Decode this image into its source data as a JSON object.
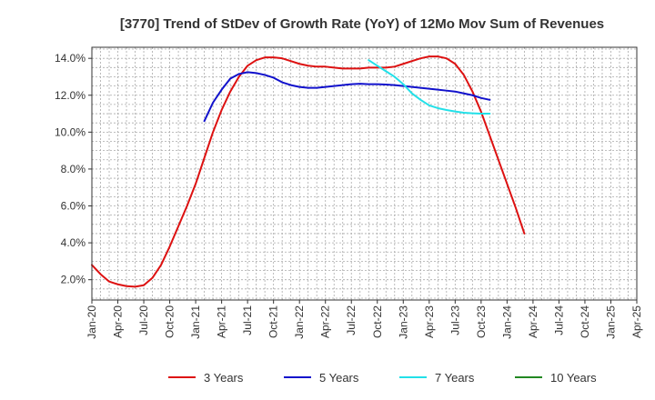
{
  "chart_data": {
    "type": "line",
    "title": "[3770]  Trend of StDev of Growth Rate (YoY) of 12Mo Mov Sum of Revenues",
    "xlabel": "",
    "ylabel": "",
    "ylim": [
      0.9,
      14.6
    ],
    "y_ticks": [
      2.0,
      4.0,
      6.0,
      8.0,
      10.0,
      12.0,
      14.0
    ],
    "y_tick_labels": [
      "2.0%",
      "4.0%",
      "6.0%",
      "8.0%",
      "10.0%",
      "12.0%",
      "14.0%"
    ],
    "x_tick_labels": [
      "Jan-20",
      "Apr-20",
      "Jul-20",
      "Oct-20",
      "Jan-21",
      "Apr-21",
      "Jul-21",
      "Oct-21",
      "Jan-22",
      "Apr-22",
      "Jul-22",
      "Oct-22",
      "Jan-23",
      "Apr-23",
      "Jul-23",
      "Oct-23",
      "Jan-24",
      "Apr-24",
      "Jul-24",
      "Oct-24",
      "Jan-25",
      "Apr-25"
    ],
    "grid": true,
    "legend_position": "bottom",
    "series": [
      {
        "name": "3 Years",
        "color": "#dd1111",
        "points": [
          [
            0,
            2.8
          ],
          [
            1,
            2.3
          ],
          [
            2,
            1.9
          ],
          [
            3,
            1.75
          ],
          [
            4,
            1.65
          ],
          [
            5,
            1.62
          ],
          [
            6,
            1.7
          ],
          [
            7,
            2.1
          ],
          [
            8,
            2.8
          ],
          [
            9,
            3.8
          ],
          [
            10,
            4.9
          ],
          [
            11,
            6.0
          ],
          [
            12,
            7.2
          ],
          [
            13,
            8.6
          ],
          [
            14,
            10.0
          ],
          [
            15,
            11.2
          ],
          [
            16,
            12.2
          ],
          [
            17,
            13.0
          ],
          [
            18,
            13.6
          ],
          [
            19,
            13.9
          ],
          [
            20,
            14.05
          ],
          [
            21,
            14.05
          ],
          [
            22,
            14.0
          ],
          [
            23,
            13.85
          ],
          [
            24,
            13.7
          ],
          [
            25,
            13.6
          ],
          [
            26,
            13.55
          ],
          [
            27,
            13.55
          ],
          [
            28,
            13.5
          ],
          [
            29,
            13.45
          ],
          [
            30,
            13.45
          ],
          [
            31,
            13.45
          ],
          [
            32,
            13.5
          ],
          [
            33,
            13.5
          ],
          [
            34,
            13.5
          ],
          [
            35,
            13.55
          ],
          [
            36,
            13.7
          ],
          [
            37,
            13.85
          ],
          [
            38,
            14.0
          ],
          [
            39,
            14.1
          ],
          [
            40,
            14.1
          ],
          [
            41,
            14.0
          ],
          [
            42,
            13.7
          ],
          [
            43,
            13.1
          ],
          [
            44,
            12.2
          ],
          [
            45,
            11.1
          ],
          [
            46,
            9.8
          ],
          [
            47,
            8.5
          ],
          [
            48,
            7.2
          ],
          [
            49,
            5.9
          ],
          [
            50,
            4.5
          ]
        ]
      },
      {
        "name": "5 Years",
        "color": "#1111cc",
        "points": [
          [
            13,
            10.6
          ],
          [
            14,
            11.6
          ],
          [
            15,
            12.3
          ],
          [
            16,
            12.9
          ],
          [
            17,
            13.15
          ],
          [
            18,
            13.25
          ],
          [
            19,
            13.2
          ],
          [
            20,
            13.1
          ],
          [
            21,
            12.95
          ],
          [
            22,
            12.7
          ],
          [
            23,
            12.55
          ],
          [
            24,
            12.45
          ],
          [
            25,
            12.4
          ],
          [
            26,
            12.4
          ],
          [
            27,
            12.45
          ],
          [
            28,
            12.5
          ],
          [
            29,
            12.55
          ],
          [
            30,
            12.6
          ],
          [
            31,
            12.62
          ],
          [
            32,
            12.6
          ],
          [
            33,
            12.6
          ],
          [
            34,
            12.58
          ],
          [
            35,
            12.55
          ],
          [
            36,
            12.5
          ],
          [
            37,
            12.45
          ],
          [
            38,
            12.4
          ],
          [
            39,
            12.35
          ],
          [
            40,
            12.3
          ],
          [
            41,
            12.25
          ],
          [
            42,
            12.2
          ],
          [
            43,
            12.1
          ],
          [
            44,
            12.0
          ],
          [
            45,
            11.85
          ],
          [
            46,
            11.75
          ]
        ]
      },
      {
        "name": "7 Years",
        "color": "#22e0e8",
        "points": [
          [
            32,
            13.9
          ],
          [
            33,
            13.6
          ],
          [
            34,
            13.3
          ],
          [
            35,
            13.0
          ],
          [
            36,
            12.6
          ],
          [
            37,
            12.1
          ],
          [
            38,
            11.75
          ],
          [
            39,
            11.45
          ],
          [
            40,
            11.3
          ],
          [
            41,
            11.2
          ],
          [
            42,
            11.12
          ],
          [
            43,
            11.05
          ],
          [
            44,
            11.02
          ],
          [
            45,
            11.0
          ],
          [
            46,
            11.0
          ]
        ]
      },
      {
        "name": "10 Years",
        "color": "#228822",
        "points": []
      }
    ]
  }
}
